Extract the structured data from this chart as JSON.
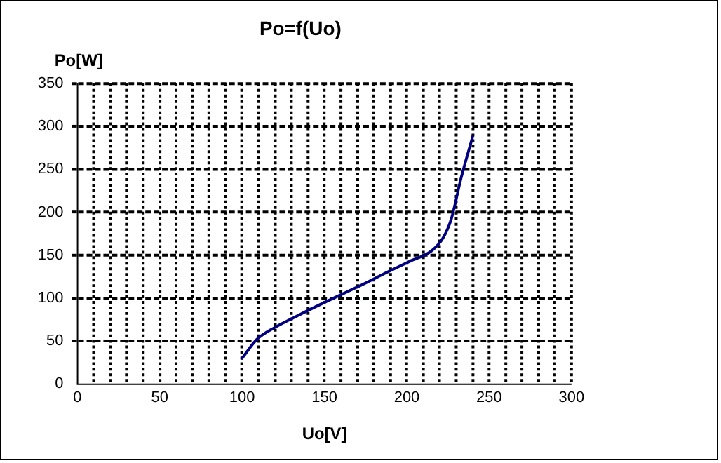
{
  "chart_data": {
    "type": "line",
    "title": "Po=f(Uo)",
    "xlabel": "Uo[V]",
    "ylabel": "Po[W]",
    "xlim": [
      0,
      300
    ],
    "ylim": [
      0,
      350
    ],
    "xticks": [
      0,
      {
        "value": 10,
        "label": null
      },
      {
        "value": 20,
        "label": null
      },
      {
        "value": 30,
        "label": null
      },
      {
        "value": 40,
        "label": null
      },
      50,
      {
        "value": 60,
        "label": null
      },
      {
        "value": 70,
        "label": null
      },
      {
        "value": 80,
        "label": null
      },
      {
        "value": 90,
        "label": null
      },
      100,
      {
        "value": 110,
        "label": null
      },
      {
        "value": 120,
        "label": null
      },
      {
        "value": 130,
        "label": null
      },
      {
        "value": 140,
        "label": null
      },
      150,
      {
        "value": 160,
        "label": null
      },
      {
        "value": 170,
        "label": null
      },
      {
        "value": 180,
        "label": null
      },
      {
        "value": 190,
        "label": null
      },
      200,
      {
        "value": 210,
        "label": null
      },
      {
        "value": 220,
        "label": null
      },
      {
        "value": 230,
        "label": null
      },
      {
        "value": 240,
        "label": null
      },
      250,
      {
        "value": 260,
        "label": null
      },
      {
        "value": 270,
        "label": null
      },
      {
        "value": 280,
        "label": null
      },
      {
        "value": 290,
        "label": null
      },
      300
    ],
    "yticks": [
      0,
      50,
      100,
      150,
      200,
      250,
      300,
      350
    ],
    "grid": true,
    "legend": false,
    "marker": "none",
    "line_style": "solid",
    "series": [
      {
        "color": "#000080",
        "x": [
          100,
          109,
          120,
          131,
          150,
          170,
          189,
          202,
          215,
          222,
          227,
          233,
          240
        ],
        "values": [
          30,
          52,
          66,
          77,
          95,
          113,
          131,
          143,
          155,
          170,
          192,
          240,
          288
        ]
      }
    ]
  }
}
